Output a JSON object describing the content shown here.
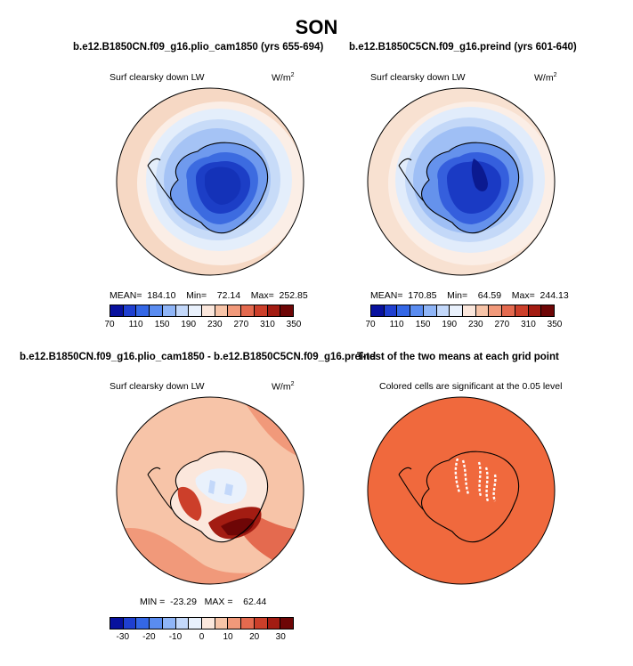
{
  "figure": {
    "title": "SON"
  },
  "panels": [
    {
      "subtitle": "b.e12.B1850CN.f09_g16.plio_cam1850 (yrs 655-694)",
      "label": "Surf clearsky down LW",
      "units": "W/m",
      "units_sup": "2",
      "stats": "MEAN=  184.10    Min=    72.14    Max=  252.85"
    },
    {
      "subtitle": "b.e12.B1850C5CN.f09_g16.preind (yrs 601-640)",
      "label": "Surf clearsky down LW",
      "units": "W/m",
      "units_sup": "2",
      "stats": "MEAN=  170.85    Min=    64.59    Max=  244.13"
    },
    {
      "subtitle": "b.e12.B1850CN.f09_g16.plio_cam1850 - b.e12.B1850C5CN.f09_g16.preind",
      "label": "Surf clearsky down LW",
      "units": "W/m",
      "units_sup": "2",
      "stats": "MIN =  -23.29   MAX =    62.44"
    },
    {
      "subtitle": "T-test of the two means at each grid point",
      "label": "Colored cells are significant at the 0.05 level"
    }
  ],
  "colorbar_abs": {
    "ticks": [
      "70",
      "110",
      "150",
      "190",
      "230",
      "270",
      "310",
      "350"
    ],
    "colors": [
      "#08119e",
      "#1f3fd0",
      "#3467e6",
      "#5a8cf0",
      "#8fb5f7",
      "#c3d8fa",
      "#e9f1fc",
      "#fbe7dc",
      "#f7c4a8",
      "#f1997a",
      "#e46a4f",
      "#cc3f2a",
      "#a31c12",
      "#6e0606"
    ]
  },
  "colorbar_diff": {
    "ticks": [
      "-30",
      "-20",
      "-10",
      "0",
      "10",
      "20",
      "30"
    ],
    "colors": [
      "#08119e",
      "#1f3fd0",
      "#3467e6",
      "#5a8cf0",
      "#8fb5f7",
      "#c3d8fa",
      "#e9f1fc",
      "#fbe7dc",
      "#f7c4a8",
      "#f1997a",
      "#e46a4f",
      "#cc3f2a",
      "#a31c12",
      "#6e0606"
    ]
  },
  "ttest_color": "#f0693d",
  "colors": {
    "ocean_warm": "#f6d8c4",
    "ocean_mid": "#fbeee6",
    "ice_edge": "#dce9f9",
    "land_light": "#a9c6f6",
    "land_mid": "#6f9aee",
    "land_deep": "#2f5fdc",
    "land_core": "#1838c0",
    "land_darkest": "#0b1a90"
  }
}
